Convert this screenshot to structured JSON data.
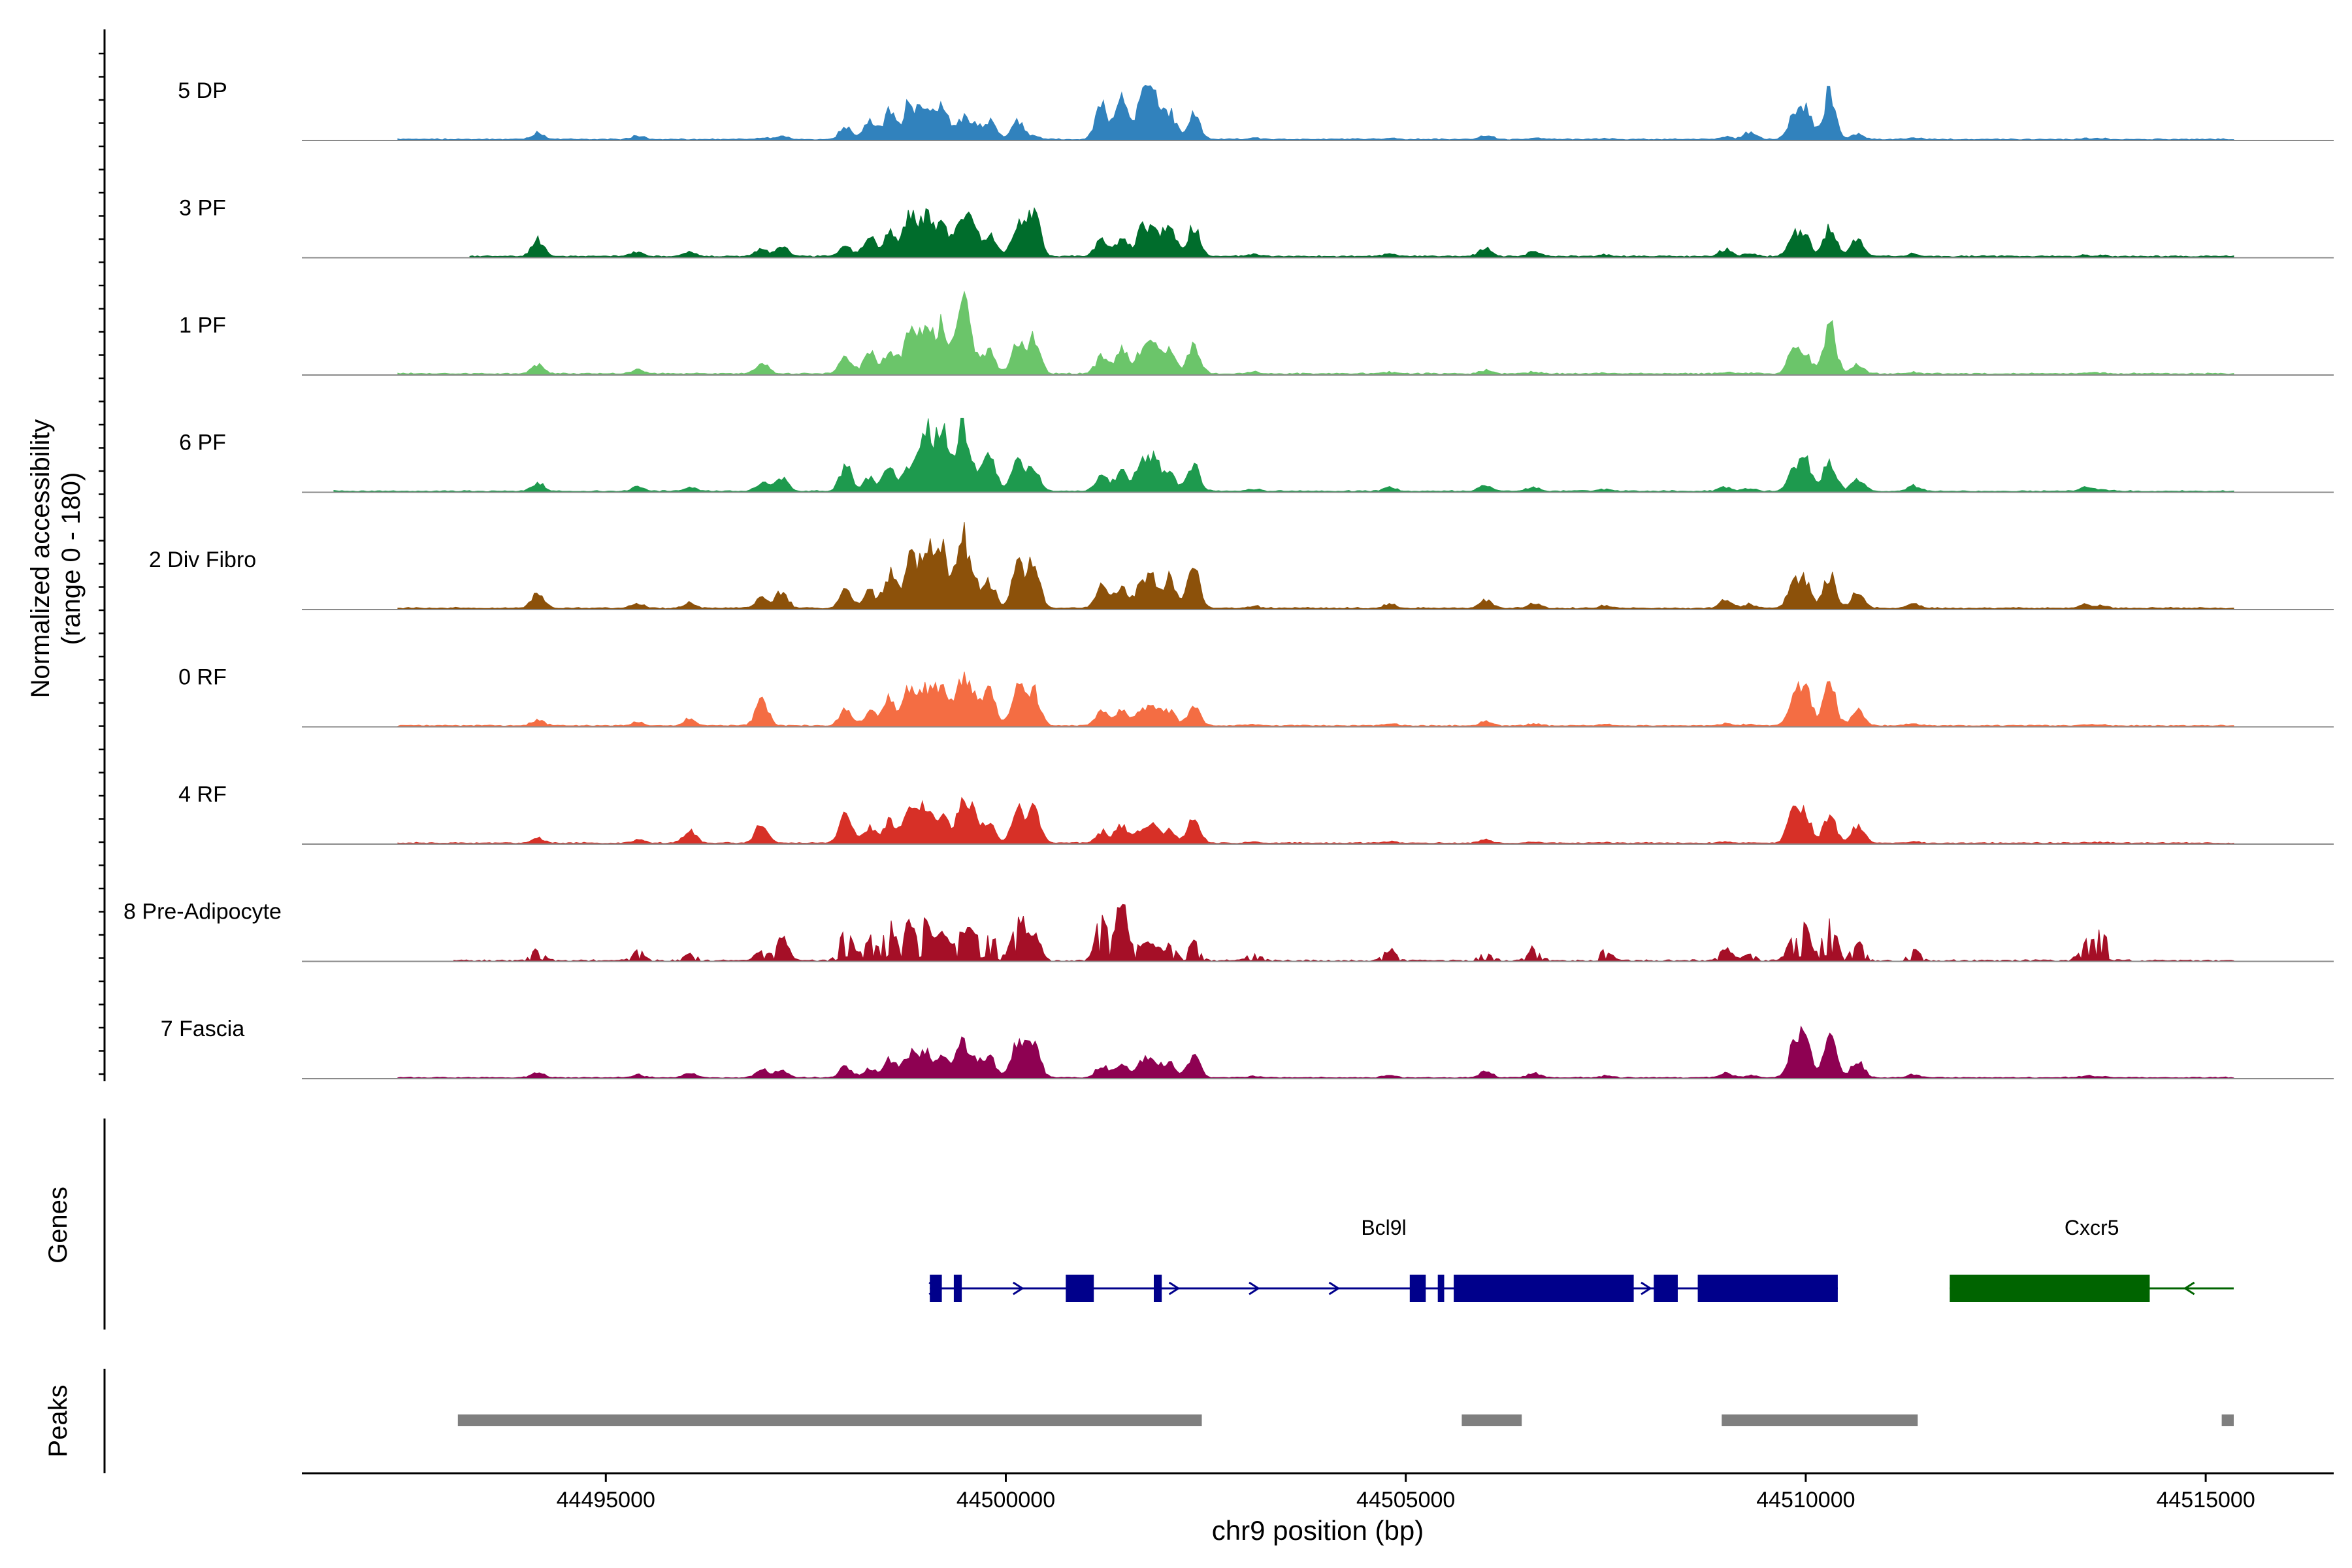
{
  "chart_data": {
    "type": "area",
    "title": "",
    "ylabel_line1": "Normalized accessibility",
    "ylabel_line2": "(range 0 - 180)",
    "xlabel": "chr9 position (bp)",
    "chromosome": "chr9",
    "xlim": [
      44491200,
      44516600
    ],
    "ylim": [
      0,
      180
    ],
    "x_ticks": [
      44495000,
      44500000,
      44505000,
      44510000,
      44515000
    ],
    "x_tick_labels": [
      "44495000",
      "44500000",
      "44505000",
      "44510000",
      "44515000"
    ],
    "series": [
      {
        "name": "5 DP",
        "color": "#3182BD",
        "scale": 0.78,
        "lo": 44492400,
        "hi": 44515350
      },
      {
        "name": "3 PF",
        "color": "#006D2C",
        "scale": 0.95,
        "lo": 44493300,
        "hi": 44515350
      },
      {
        "name": "1 PF",
        "color": "#6BC56A",
        "scale": 0.88,
        "lo": 44492400,
        "hi": 44515350
      },
      {
        "name": "6 PF",
        "color": "#1E9A4E",
        "scale": 0.78,
        "lo": 44491600,
        "hi": 44515350
      },
      {
        "name": "2 Div Fibro",
        "color": "#8C510A",
        "scale": 0.93,
        "lo": 44492400,
        "hi": 44515350
      },
      {
        "name": "0 RF",
        "color": "#F46D43",
        "scale": 0.77,
        "lo": 44492400,
        "hi": 44515350
      },
      {
        "name": "4 RF",
        "color": "#D73027",
        "scale": 0.72,
        "lo": 44492400,
        "hi": 44515350
      },
      {
        "name": "8 Pre-Adipocyte",
        "color": "#A50F27",
        "scale": 0.7,
        "lo": 44493100,
        "hi": 44515350
      },
      {
        "name": "7 Fascia",
        "color": "#8E0152",
        "scale": 0.7,
        "lo": 44492400,
        "hi": 44515350
      }
    ],
    "peak_profiles": {
      "x": [
        44494150,
        44495400,
        44496050,
        44496950,
        44497200,
        44498000,
        44498300,
        44498550,
        44498800,
        44499000,
        44499200,
        44499450,
        44499600,
        44499800,
        44500150,
        44500350,
        44501200,
        44501450,
        44501700,
        44501850,
        44502050,
        44502350,
        44503100,
        44504800,
        44506000,
        44506600,
        44507500,
        44509000,
        44509300,
        44509850,
        44510000,
        44510300,
        44510650,
        44511350,
        44513500,
        44513700
      ],
      "heights": {
        "5 DP": [
          10,
          5,
          0,
          2,
          5,
          18,
          25,
          40,
          52,
          48,
          48,
          28,
          18,
          28,
          26,
          4,
          48,
          65,
          55,
          58,
          38,
          38,
          2,
          2,
          6,
          2,
          1,
          4,
          10,
          32,
          45,
          68,
          8,
          2,
          1,
          1
        ],
        "3 PF": [
          20,
          6,
          6,
          8,
          12,
          12,
          22,
          28,
          52,
          48,
          40,
          52,
          30,
          25,
          38,
          52,
          22,
          20,
          30,
          28,
          38,
          35,
          3,
          3,
          10,
          6,
          2,
          8,
          4,
          25,
          20,
          35,
          22,
          3,
          1,
          1
        ],
        "1 PF": [
          12,
          5,
          0,
          15,
          0,
          22,
          28,
          28,
          60,
          62,
          60,
          98,
          22,
          28,
          38,
          45,
          22,
          30,
          28,
          35,
          28,
          40,
          2,
          2,
          4,
          2,
          1,
          2,
          1,
          30,
          22,
          62,
          12,
          2,
          1,
          1
        ],
        "6 PF": [
          12,
          6,
          5,
          12,
          20,
          35,
          20,
          35,
          35,
          90,
          90,
          100,
          20,
          55,
          45,
          30,
          25,
          30,
          40,
          45,
          28,
          40,
          3,
          6,
          8,
          6,
          3,
          6,
          4,
          30,
          42,
          45,
          18,
          8,
          6,
          2
        ],
        "2 Div Fibro": [
          20,
          6,
          6,
          15,
          20,
          22,
          20,
          42,
          60,
          78,
          72,
          85,
          28,
          30,
          55,
          55,
          25,
          28,
          30,
          30,
          35,
          50,
          3,
          5,
          10,
          6,
          3,
          10,
          5,
          30,
          30,
          40,
          20,
          6,
          4,
          3
        ],
        "0 RF": [
          8,
          5,
          10,
          40,
          0,
          25,
          20,
          40,
          55,
          55,
          65,
          65,
          40,
          52,
          60,
          50,
          20,
          22,
          20,
          28,
          20,
          30,
          2,
          3,
          6,
          3,
          2,
          3,
          2,
          38,
          55,
          60,
          22,
          3,
          1,
          1
        ],
        "4 RF": [
          8,
          5,
          20,
          30,
          0,
          50,
          25,
          35,
          50,
          62,
          45,
          62,
          40,
          30,
          50,
          55,
          18,
          30,
          20,
          25,
          20,
          40,
          2,
          3,
          5,
          2,
          1,
          2,
          1,
          50,
          40,
          45,
          28,
          2,
          1,
          1
        ],
        "8 Pre-Adipocyte": [
          20,
          15,
          10,
          15,
          35,
          55,
          40,
          55,
          60,
          55,
          55,
          40,
          42,
          50,
          75,
          45,
          68,
          90,
          25,
          22,
          22,
          28,
          12,
          18,
          15,
          20,
          15,
          18,
          12,
          35,
          45,
          72,
          30,
          15,
          30,
          50
        ],
        "7 Fascia": [
          8,
          5,
          8,
          15,
          12,
          18,
          15,
          30,
          40,
          38,
          38,
          50,
          30,
          32,
          60,
          60,
          20,
          25,
          25,
          28,
          22,
          35,
          2,
          4,
          10,
          8,
          3,
          8,
          4,
          50,
          62,
          75,
          28,
          5,
          3,
          2
        ]
      }
    },
    "genes_track_label": "Genes",
    "genes": [
      {
        "name": "Bcl9l",
        "strand": "+",
        "color": "#00008B",
        "start": 44499050,
        "end": 44510400,
        "exons": [
          [
            44499050,
            44499200
          ],
          [
            44499350,
            44499450
          ],
          [
            44500750,
            44501100
          ],
          [
            44501850,
            44501950
          ],
          [
            44505050,
            44505250
          ],
          [
            44505400,
            44505480
          ],
          [
            44505600,
            44507850
          ],
          [
            44508100,
            44508400
          ],
          [
            44508650,
            44510400
          ]
        ],
        "arrows": [
          44499100,
          44500150,
          44502100,
          44503100,
          44504100,
          44508000
        ]
      },
      {
        "name": "Cxcr5",
        "strand": "-",
        "color": "#006400",
        "start": 44511800,
        "end": 44515350,
        "exons": [
          [
            44511800,
            44514300
          ]
        ],
        "arrows": [
          44514800
        ]
      }
    ],
    "peaks_track_label": "Peaks",
    "peaks_color": "#7F7F7F",
    "peaks": [
      [
        44493150,
        44502450
      ],
      [
        44505700,
        44506450
      ],
      [
        44508950,
        44511400
      ],
      [
        44515200,
        44515350
      ]
    ]
  }
}
